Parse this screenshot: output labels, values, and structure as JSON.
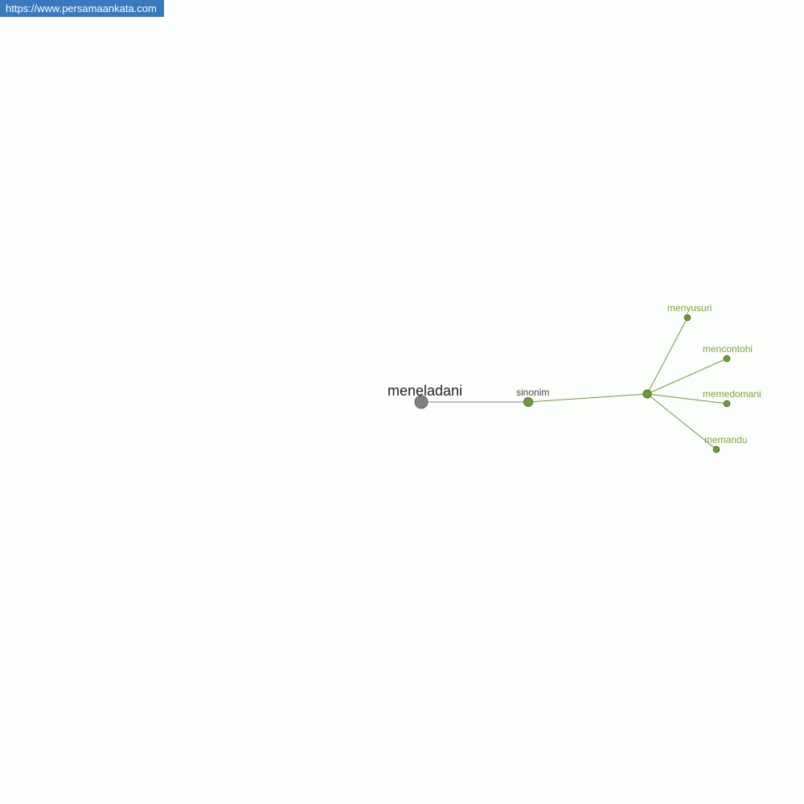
{
  "site_url": "https://www.persamaankata.com",
  "graph": {
    "root": "meneladani",
    "relation": "sinonim",
    "synonyms": [
      "menyusuri",
      "mencontohi",
      "memedomani",
      "memandu"
    ]
  },
  "colors": {
    "root_node": "#808080",
    "green_node": "#6e9a3a",
    "green_label": "#7aa23c",
    "url_banner": "#3a78c0",
    "background": "#fcfefc"
  }
}
